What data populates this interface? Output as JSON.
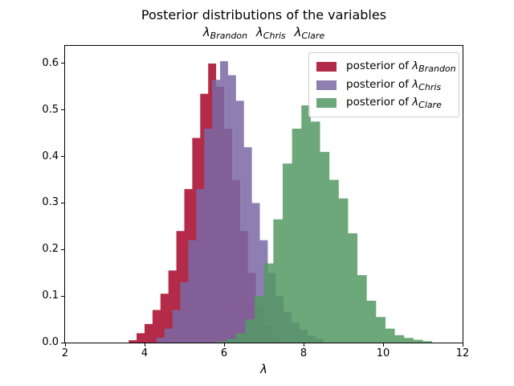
{
  "chart_data": {
    "type": "histogram",
    "title": "Posterior distributions of the variables",
    "subtitle": "λ_Brandon λ_Chris λ_Clare",
    "xlabel": "λ",
    "ylabel": "",
    "xlim": [
      2,
      12
    ],
    "ylim": [
      0,
      0.638
    ],
    "grid": false,
    "legend_position": "upper right",
    "xticks": {
      "values": [
        2,
        4,
        6,
        8,
        10,
        12
      ],
      "labels": [
        "2",
        "4",
        "6",
        "8",
        "10",
        "12"
      ]
    },
    "yticks": {
      "values": [
        0,
        0.1,
        0.2,
        0.3,
        0.4,
        0.5,
        0.6
      ],
      "labels": [
        "0.0",
        "0.1",
        "0.2",
        "0.3",
        "0.4",
        "0.5",
        "0.6"
      ]
    },
    "series": [
      {
        "name": "posterior of λ_Brandon",
        "color": "#A60628",
        "fill": "rgba(166,6,40,0.85)",
        "bin_start": 3.6,
        "bin_width": 0.2,
        "heights": [
          0.005,
          0.02,
          0.04,
          0.07,
          0.105,
          0.155,
          0.24,
          0.33,
          0.44,
          0.535,
          0.6,
          0.55,
          0.46,
          0.35,
          0.24,
          0.15,
          0.08,
          0.035,
          0.012
        ]
      },
      {
        "name": "posterior of λ_Chris",
        "color": "#7A68A6",
        "fill": "rgba(122,104,166,0.85)",
        "bin_start": 4.3,
        "bin_width": 0.2,
        "heights": [
          0.01,
          0.03,
          0.07,
          0.13,
          0.22,
          0.33,
          0.46,
          0.565,
          0.605,
          0.575,
          0.52,
          0.42,
          0.3,
          0.22,
          0.15,
          0.1,
          0.065,
          0.043,
          0.027,
          0.015,
          0.008
        ]
      },
      {
        "name": "posterior of λ_Clare",
        "color": "#539963",
        "fill": "rgba(83,153,99,0.85)",
        "bin_start": 5.83,
        "bin_width": 0.235,
        "heights": [
          0.003,
          0.008,
          0.02,
          0.05,
          0.1,
          0.17,
          0.265,
          0.385,
          0.46,
          0.51,
          0.475,
          0.41,
          0.35,
          0.31,
          0.235,
          0.145,
          0.09,
          0.055,
          0.03,
          0.016,
          0.01,
          0.006,
          0.003
        ]
      }
    ]
  },
  "subtitle": {
    "tokens": [
      {
        "symbol": "λ",
        "sub": "Brandon"
      },
      {
        "symbol": "λ",
        "sub": "Chris"
      },
      {
        "symbol": "λ",
        "sub": "Clare"
      }
    ]
  },
  "legend": {
    "items": [
      {
        "prefix": "posterior of ",
        "symbol": "λ",
        "sub": "Brandon"
      },
      {
        "prefix": "posterior of ",
        "symbol": "λ",
        "sub": "Chris"
      },
      {
        "prefix": "posterior of ",
        "symbol": "λ",
        "sub": "Clare"
      }
    ]
  }
}
